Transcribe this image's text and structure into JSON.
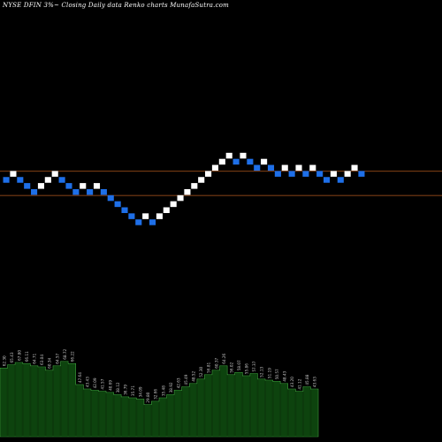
{
  "chart_data": {
    "type": "renko",
    "title": "NYSE DFIN  3%~  Closing Daily data  Renko  charts MunafaSutra.com",
    "colors": {
      "background": "#000000",
      "up_brick": "#ffffff",
      "down_brick": "#1e6fe8",
      "reference_line": "#b55a1e",
      "volume_fill": "#0c3a0c",
      "volume_stroke": "#3fa33f",
      "volume_label": "#c8c8c8"
    },
    "bricks": [
      {
        "dir": "down",
        "level": 0
      },
      {
        "dir": "up",
        "level": 1
      },
      {
        "dir": "down",
        "level": 0
      },
      {
        "dir": "down",
        "level": -1
      },
      {
        "dir": "down",
        "level": -2
      },
      {
        "dir": "up",
        "level": -1
      },
      {
        "dir": "up",
        "level": 0
      },
      {
        "dir": "up",
        "level": 1
      },
      {
        "dir": "down",
        "level": 0
      },
      {
        "dir": "down",
        "level": -1
      },
      {
        "dir": "down",
        "level": -2
      },
      {
        "dir": "up",
        "level": -1
      },
      {
        "dir": "down",
        "level": -2
      },
      {
        "dir": "up",
        "level": -1
      },
      {
        "dir": "down",
        "level": -2
      },
      {
        "dir": "down",
        "level": -3
      },
      {
        "dir": "down",
        "level": -4
      },
      {
        "dir": "down",
        "level": -5
      },
      {
        "dir": "down",
        "level": -6
      },
      {
        "dir": "down",
        "level": -7
      },
      {
        "dir": "up",
        "level": -6
      },
      {
        "dir": "down",
        "level": -7
      },
      {
        "dir": "up",
        "level": -6
      },
      {
        "dir": "up",
        "level": -5
      },
      {
        "dir": "up",
        "level": -4
      },
      {
        "dir": "up",
        "level": -3
      },
      {
        "dir": "up",
        "level": -2
      },
      {
        "dir": "up",
        "level": -1
      },
      {
        "dir": "up",
        "level": 0
      },
      {
        "dir": "up",
        "level": 1
      },
      {
        "dir": "up",
        "level": 2
      },
      {
        "dir": "up",
        "level": 3
      },
      {
        "dir": "up",
        "level": 4
      },
      {
        "dir": "down",
        "level": 3
      },
      {
        "dir": "up",
        "level": 4
      },
      {
        "dir": "down",
        "level": 3
      },
      {
        "dir": "down",
        "level": 2
      },
      {
        "dir": "up",
        "level": 3
      },
      {
        "dir": "down",
        "level": 2
      },
      {
        "dir": "down",
        "level": 1
      },
      {
        "dir": "up",
        "level": 2
      },
      {
        "dir": "down",
        "level": 1
      },
      {
        "dir": "up",
        "level": 2
      },
      {
        "dir": "down",
        "level": 1
      },
      {
        "dir": "up",
        "level": 2
      },
      {
        "dir": "down",
        "level": 1
      },
      {
        "dir": "down",
        "level": 0
      },
      {
        "dir": "up",
        "level": 1
      },
      {
        "dir": "down",
        "level": 0
      },
      {
        "dir": "up",
        "level": 1
      },
      {
        "dir": "up",
        "level": 2
      },
      {
        "dir": "down",
        "level": 1
      }
    ],
    "reference_lines": [
      1,
      -3
    ],
    "volume_bars": [
      {
        "value": 62,
        "label": "62.30"
      },
      {
        "value": 65,
        "label": "65.43"
      },
      {
        "value": 67,
        "label": "67.80"
      },
      {
        "value": 66,
        "label": "66.11"
      },
      {
        "value": 64,
        "label": "64.71"
      },
      {
        "value": 63,
        "label": "63.04"
      },
      {
        "value": 60,
        "label": "60.34"
      },
      {
        "value": 64,
        "label": "64.57"
      },
      {
        "value": 68,
        "label": "68.72"
      },
      {
        "value": 66,
        "label": "66.22"
      },
      {
        "value": 47,
        "label": "47.64"
      },
      {
        "value": 43,
        "label": "43.43"
      },
      {
        "value": 42,
        "label": "42.09"
      },
      {
        "value": 41,
        "label": "41.57"
      },
      {
        "value": 40,
        "label": "40.69"
      },
      {
        "value": 38,
        "label": "38.12"
      },
      {
        "value": 36,
        "label": "36.79"
      },
      {
        "value": 35,
        "label": "35.71"
      },
      {
        "value": 34,
        "label": "34.09"
      },
      {
        "value": 29,
        "label": "29.80"
      },
      {
        "value": 32,
        "label": "32.66"
      },
      {
        "value": 35,
        "label": "35.48"
      },
      {
        "value": 38,
        "label": "38.92"
      },
      {
        "value": 42,
        "label": "42.63"
      },
      {
        "value": 45,
        "label": "45.49"
      },
      {
        "value": 48,
        "label": "48.52"
      },
      {
        "value": 52,
        "label": "52.30"
      },
      {
        "value": 56,
        "label": "56.81"
      },
      {
        "value": 60,
        "label": "60.37"
      },
      {
        "value": 64,
        "label": "64.26"
      },
      {
        "value": 56,
        "label": "56.02"
      },
      {
        "value": 58,
        "label": "58.07"
      },
      {
        "value": 55,
        "label": "55.86"
      },
      {
        "value": 57,
        "label": "57.37"
      },
      {
        "value": 52,
        "label": "52.13"
      },
      {
        "value": 51,
        "label": "51.19"
      },
      {
        "value": 50,
        "label": "50.57"
      },
      {
        "value": 48,
        "label": "48.43"
      },
      {
        "value": 43,
        "label": "43.20"
      },
      {
        "value": 41,
        "label": "41.12"
      },
      {
        "value": 45,
        "label": "45.88"
      },
      {
        "value": 43,
        "label": "43.63"
      }
    ],
    "volume_range": [
      0,
      75
    ]
  }
}
